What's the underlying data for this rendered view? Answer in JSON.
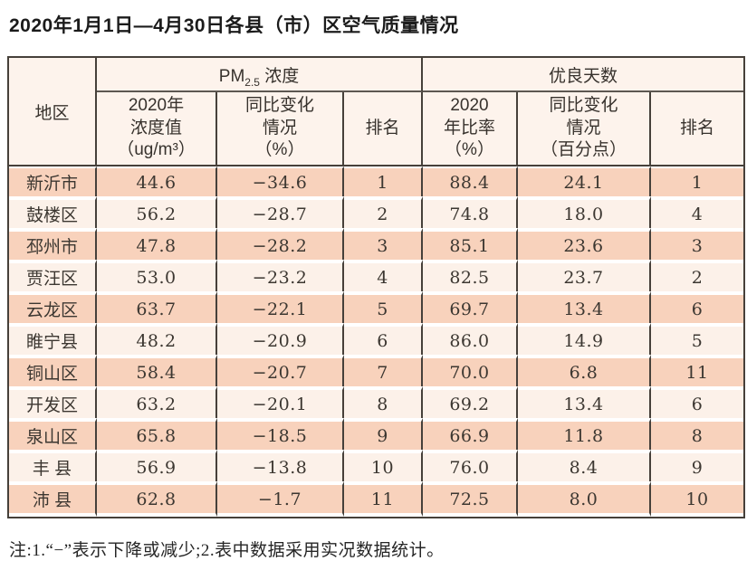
{
  "page": {
    "title": "2020年1月1日—4月30日各县（市）区空气质量情况",
    "footnote": "注:1.“−”表示下降或减少;2.表中数据采用实况数据统计。"
  },
  "colors": {
    "border_dark": "#46403a",
    "row_odd_bg": "#f8d2bc",
    "row_even_bg": "#fcf1e9",
    "header_bg": "#fdf3ec"
  },
  "table": {
    "header": {
      "region": "地区",
      "pm_group_prefix": "PM",
      "pm_group_sub": "2.5",
      "pm_group_suffix": " 浓度",
      "good_group": "优良天数",
      "pm_value": "2020年\n浓度值\n（ug/m³）",
      "pm_change": "同比变化\n情况\n（%）",
      "pm_rank": "排名",
      "good_ratio": "2020\n年比率\n（%）",
      "good_change": "同比变化\n情况\n（百分点）",
      "good_rank": "排名"
    },
    "rows": [
      {
        "region": "新沂市",
        "pm_value": "44.6",
        "pm_change": "−34.6",
        "pm_rank": "1",
        "good_ratio": "88.4",
        "good_change": "24.1",
        "good_rank": "1"
      },
      {
        "region": "鼓楼区",
        "pm_value": "56.2",
        "pm_change": "−28.7",
        "pm_rank": "2",
        "good_ratio": "74.8",
        "good_change": "18.0",
        "good_rank": "4"
      },
      {
        "region": "邳州市",
        "pm_value": "47.8",
        "pm_change": "−28.2",
        "pm_rank": "3",
        "good_ratio": "85.1",
        "good_change": "23.6",
        "good_rank": "3"
      },
      {
        "region": "贾汪区",
        "pm_value": "53.0",
        "pm_change": "−23.2",
        "pm_rank": "4",
        "good_ratio": "82.5",
        "good_change": "23.7",
        "good_rank": "2"
      },
      {
        "region": "云龙区",
        "pm_value": "63.7",
        "pm_change": "−22.1",
        "pm_rank": "5",
        "good_ratio": "69.7",
        "good_change": "13.4",
        "good_rank": "6"
      },
      {
        "region": "睢宁县",
        "pm_value": "48.2",
        "pm_change": "−20.9",
        "pm_rank": "6",
        "good_ratio": "86.0",
        "good_change": "14.9",
        "good_rank": "5"
      },
      {
        "region": "铜山区",
        "pm_value": "58.4",
        "pm_change": "−20.7",
        "pm_rank": "7",
        "good_ratio": "70.0",
        "good_change": "6.8",
        "good_rank": "11"
      },
      {
        "region": "开发区",
        "pm_value": "63.2",
        "pm_change": "−20.1",
        "pm_rank": "8",
        "good_ratio": "69.2",
        "good_change": "13.4",
        "good_rank": "6"
      },
      {
        "region": "泉山区",
        "pm_value": "65.8",
        "pm_change": "−18.5",
        "pm_rank": "9",
        "good_ratio": "66.9",
        "good_change": "11.8",
        "good_rank": "8"
      },
      {
        "region": "丰 县",
        "pm_value": "56.9",
        "pm_change": "−13.8",
        "pm_rank": "10",
        "good_ratio": "76.0",
        "good_change": "8.4",
        "good_rank": "9"
      },
      {
        "region": "沛 县",
        "pm_value": "62.8",
        "pm_change": "−1.7",
        "pm_rank": "11",
        "good_ratio": "72.5",
        "good_change": "8.0",
        "good_rank": "10"
      }
    ]
  }
}
